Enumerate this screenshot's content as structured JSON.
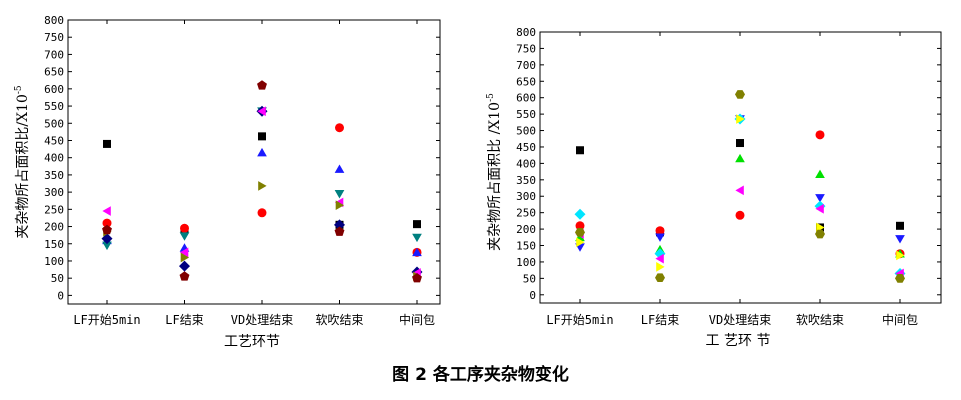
{
  "caption": "图 2 各工序夹杂物变化",
  "chart_data": [
    {
      "type": "scatter",
      "xlabel": "工艺环节",
      "ylabel": "夹杂物所占面积比/X10",
      "ylabel_exp": "-5",
      "ylim": [
        -25,
        800
      ],
      "yticks": [
        0,
        50,
        100,
        150,
        200,
        250,
        300,
        350,
        400,
        450,
        500,
        550,
        600,
        650,
        700,
        750,
        800
      ],
      "categories": [
        "LF开始5min",
        "LF结束",
        "VD处理结束",
        "软吹结束",
        "中间包"
      ],
      "grid": false,
      "series": [
        {
          "marker": "square",
          "color": "#000000",
          "values": [
            440,
            190,
            462,
            205,
            207
          ]
        },
        {
          "marker": "circle",
          "color": "#ff0000",
          "values": [
            210,
            195,
            240,
            487,
            125
          ]
        },
        {
          "marker": "triangle-up",
          "color": "#1a1aff",
          "values": [
            160,
            138,
            415,
            367,
            125
          ]
        },
        {
          "marker": "triangle-down",
          "color": "#008080",
          "values": [
            145,
            172,
            535,
            295,
            168
          ]
        },
        {
          "marker": "diamond",
          "color": "#000080",
          "values": [
            165,
            85,
            535,
            205,
            68
          ]
        },
        {
          "marker": "triangle-left",
          "color": "#ff00ff",
          "values": [
            245,
            125,
            535,
            270,
            65
          ]
        },
        {
          "marker": "triangle-right",
          "color": "#808000",
          "values": [
            185,
            110,
            318,
            262,
            55
          ]
        },
        {
          "marker": "pentagon",
          "color": "#800000",
          "values": [
            190,
            55,
            610,
            185,
            50
          ]
        }
      ]
    },
    {
      "type": "scatter",
      "xlabel": "工 艺环 节",
      "ylabel": "夹杂物所占面积比 /X10",
      "ylabel_exp": "-5",
      "ylim": [
        -25,
        800
      ],
      "yticks": [
        0,
        50,
        100,
        150,
        200,
        250,
        300,
        350,
        400,
        450,
        500,
        550,
        600,
        650,
        700,
        750,
        800
      ],
      "categories": [
        "LF开始5min",
        "LF结束",
        "VD处理结束",
        "软吹结束",
        "中间包"
      ],
      "grid": false,
      "series": [
        {
          "marker": "square",
          "color": "#000000",
          "values": [
            440,
            190,
            462,
            205,
            210
          ]
        },
        {
          "marker": "circle",
          "color": "#ff0000",
          "values": [
            210,
            195,
            242,
            487,
            125
          ]
        },
        {
          "marker": "triangle-up",
          "color": "#00e000",
          "values": [
            175,
            138,
            415,
            367,
            125
          ]
        },
        {
          "marker": "triangle-down",
          "color": "#1a1aff",
          "values": [
            145,
            175,
            535,
            295,
            170
          ]
        },
        {
          "marker": "diamond",
          "color": "#00e5ff",
          "values": [
            245,
            125,
            535,
            270,
            65
          ]
        },
        {
          "marker": "triangle-left",
          "color": "#ff00ff",
          "values": [
            185,
            110,
            318,
            262,
            65
          ]
        },
        {
          "marker": "triangle-right",
          "color": "#ffff00",
          "values": [
            160,
            85,
            535,
            205,
            120
          ]
        },
        {
          "marker": "hexagon",
          "color": "#808000",
          "values": [
            190,
            52,
            610,
            185,
            50
          ]
        }
      ]
    }
  ]
}
